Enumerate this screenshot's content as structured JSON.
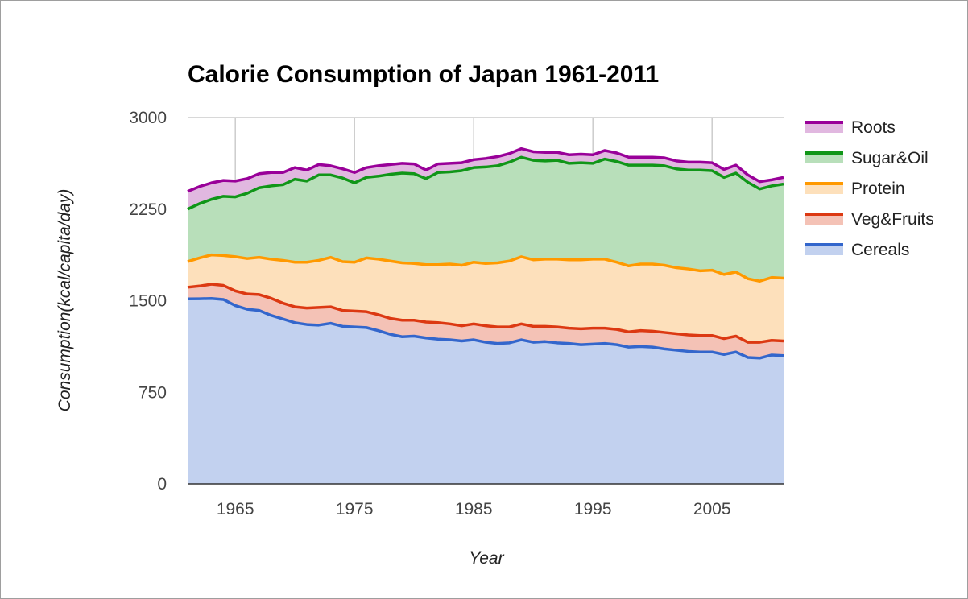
{
  "chart_data": {
    "type": "area",
    "stacked": true,
    "title": "Calorie Consumption of Japan 1961-2011",
    "xlabel": "Year",
    "ylabel": "Consumption(kcal/capita/day)",
    "xlim": [
      1961,
      2011
    ],
    "ylim": [
      0,
      3000
    ],
    "x_ticks": [
      1965,
      1975,
      1985,
      1995,
      2005
    ],
    "y_ticks": [
      0,
      750,
      1500,
      2250,
      3000
    ],
    "grid": true,
    "legend_position": "right",
    "x": [
      1961,
      1962,
      1963,
      1964,
      1965,
      1966,
      1967,
      1968,
      1969,
      1970,
      1971,
      1972,
      1973,
      1974,
      1975,
      1976,
      1977,
      1978,
      1979,
      1980,
      1981,
      1982,
      1983,
      1984,
      1985,
      1986,
      1987,
      1988,
      1989,
      1990,
      1991,
      1992,
      1993,
      1994,
      1995,
      1996,
      1997,
      1998,
      1999,
      2000,
      2001,
      2002,
      2003,
      2004,
      2005,
      2006,
      2007,
      2008,
      2009,
      2010,
      2011
    ],
    "series": [
      {
        "name": "Cereals",
        "color": "#3366cc",
        "fill": "#c2d1ef",
        "cumulative": [
          1515,
          1516,
          1518,
          1510,
          1460,
          1430,
          1420,
          1380,
          1350,
          1320,
          1305,
          1300,
          1315,
          1290,
          1285,
          1280,
          1255,
          1225,
          1205,
          1210,
          1195,
          1185,
          1180,
          1170,
          1180,
          1160,
          1150,
          1155,
          1180,
          1160,
          1165,
          1155,
          1150,
          1140,
          1145,
          1150,
          1140,
          1120,
          1125,
          1120,
          1105,
          1095,
          1085,
          1080,
          1080,
          1060,
          1080,
          1035,
          1030,
          1055,
          1050
        ]
      },
      {
        "name": "Veg&Fruits",
        "color": "#dc3912",
        "fill": "#f4c2b6",
        "cumulative": [
          1610,
          1620,
          1635,
          1625,
          1580,
          1555,
          1550,
          1520,
          1480,
          1450,
          1440,
          1445,
          1450,
          1420,
          1415,
          1410,
          1385,
          1355,
          1340,
          1340,
          1325,
          1320,
          1310,
          1295,
          1310,
          1295,
          1285,
          1285,
          1310,
          1290,
          1290,
          1285,
          1275,
          1270,
          1275,
          1275,
          1265,
          1245,
          1255,
          1250,
          1240,
          1230,
          1220,
          1215,
          1215,
          1190,
          1210,
          1160,
          1160,
          1175,
          1170
        ]
      },
      {
        "name": "Protein",
        "color": "#ff9900",
        "fill": "#fde0bb",
        "cumulative": [
          1820,
          1850,
          1875,
          1870,
          1860,
          1845,
          1855,
          1840,
          1830,
          1815,
          1815,
          1830,
          1855,
          1820,
          1815,
          1850,
          1840,
          1825,
          1810,
          1805,
          1795,
          1795,
          1800,
          1790,
          1815,
          1805,
          1810,
          1825,
          1860,
          1835,
          1840,
          1840,
          1835,
          1835,
          1840,
          1840,
          1815,
          1785,
          1800,
          1800,
          1790,
          1770,
          1760,
          1745,
          1750,
          1715,
          1735,
          1680,
          1660,
          1690,
          1685
        ]
      },
      {
        "name": "Sugar&Oil",
        "color": "#109618",
        "fill": "#b8dfba",
        "cumulative": [
          2250,
          2295,
          2330,
          2355,
          2350,
          2380,
          2425,
          2440,
          2450,
          2495,
          2480,
          2530,
          2530,
          2505,
          2465,
          2510,
          2520,
          2535,
          2545,
          2540,
          2500,
          2550,
          2555,
          2565,
          2590,
          2595,
          2605,
          2635,
          2675,
          2650,
          2645,
          2650,
          2625,
          2630,
          2625,
          2660,
          2640,
          2610,
          2610,
          2610,
          2605,
          2580,
          2570,
          2570,
          2565,
          2510,
          2545,
          2470,
          2415,
          2440,
          2455
        ]
      },
      {
        "name": "Roots",
        "color": "#990099",
        "fill": "#e1b8e0",
        "cumulative": [
          2395,
          2435,
          2465,
          2485,
          2480,
          2500,
          2540,
          2550,
          2550,
          2590,
          2570,
          2615,
          2605,
          2580,
          2550,
          2590,
          2605,
          2615,
          2625,
          2620,
          2570,
          2620,
          2625,
          2630,
          2655,
          2665,
          2680,
          2705,
          2745,
          2720,
          2715,
          2715,
          2695,
          2700,
          2695,
          2730,
          2710,
          2675,
          2675,
          2675,
          2670,
          2645,
          2635,
          2635,
          2630,
          2575,
          2610,
          2530,
          2475,
          2490,
          2510
        ]
      }
    ]
  }
}
